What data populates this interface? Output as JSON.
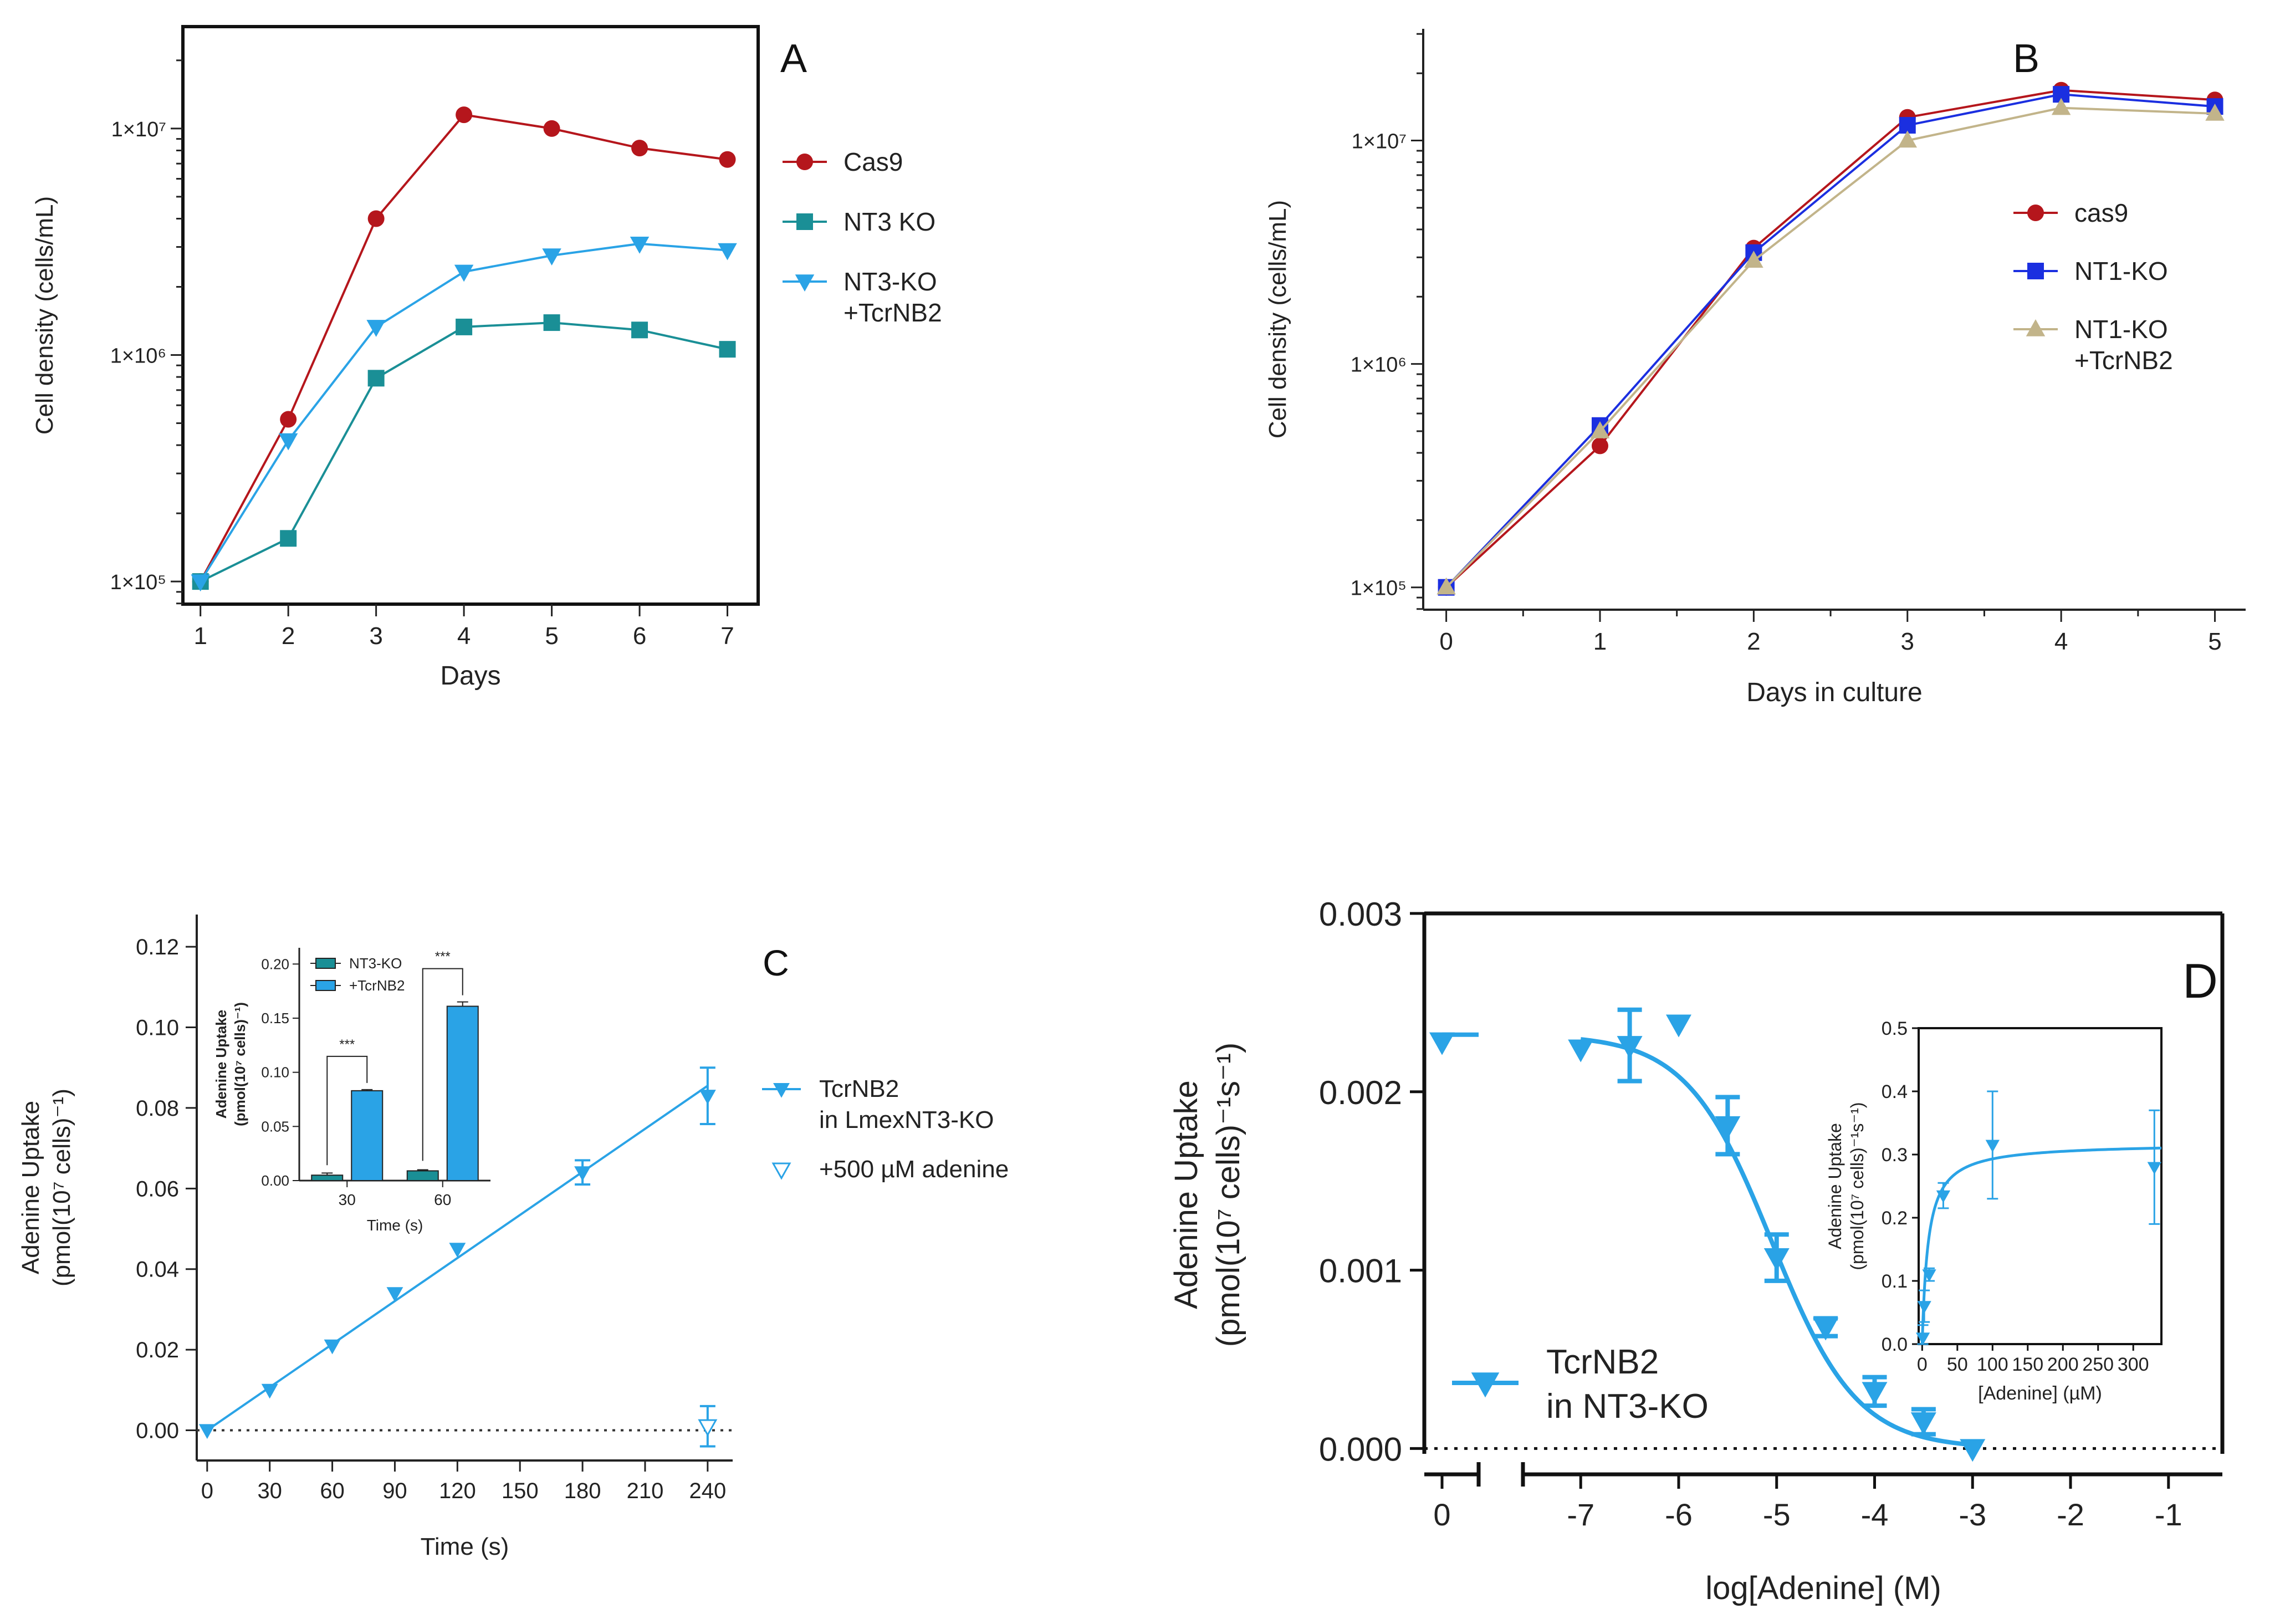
{
  "chart_data": [
    {
      "id": "A",
      "type": "line",
      "panel_label": "A",
      "xlabel": "Days",
      "ylabel": "Cell density (cells/mL)",
      "yscale": "log",
      "xlim": [
        0.8,
        7.35
      ],
      "ylim_log10": [
        4.9,
        7.45
      ],
      "xticks": [
        1,
        2,
        3,
        4,
        5,
        6,
        7
      ],
      "xtick_labels": [
        "1",
        "2",
        "3",
        "4",
        "5",
        "6",
        "7"
      ],
      "yticks": [
        5,
        6,
        7
      ],
      "ytick_labels": [
        "1×10⁵",
        "1×10⁶",
        "1×10⁷"
      ],
      "series": [
        {
          "name": "Cas9",
          "color": "#b5161c",
          "marker": "circle",
          "x": [
            1,
            2,
            3,
            4,
            5,
            6,
            7
          ],
          "y": [
            100000,
            520000,
            4000000,
            11500000,
            10000000,
            8200000,
            7300000
          ]
        },
        {
          "name": "NT3 KO",
          "color": "#1a8f96",
          "marker": "square",
          "x": [
            1,
            2,
            3,
            4,
            5,
            6,
            7
          ],
          "y": [
            100000,
            155000,
            790000,
            1330000,
            1390000,
            1290000,
            1060000
          ]
        },
        {
          "name": "NT3-KO +TcrNB2",
          "legend_lines": [
            "NT3-KO",
            "+TcrNB2"
          ],
          "color": "#2aa3e6",
          "marker": "triangle-down",
          "x": [
            1,
            2,
            3,
            4,
            5,
            6,
            7
          ],
          "y": [
            100000,
            420000,
            1330000,
            2330000,
            2750000,
            3100000,
            2900000
          ]
        }
      ]
    },
    {
      "id": "B",
      "type": "line",
      "panel_label": "B",
      "xlabel": "Days in culture",
      "ylabel": "Cell density (cells/mL)",
      "yscale": "log",
      "xlim": [
        -0.15,
        5.2
      ],
      "ylim_log10": [
        4.9,
        7.5
      ],
      "xticks": [
        0,
        1,
        2,
        3,
        4,
        5
      ],
      "xtick_labels": [
        "0",
        "1",
        "2",
        "3",
        "4",
        "5"
      ],
      "yticks": [
        5,
        6,
        7
      ],
      "ytick_labels": [
        "1×10⁵",
        "1×10⁶",
        "1×10⁷"
      ],
      "series": [
        {
          "name": "cas9",
          "color": "#b5161c",
          "marker": "circle",
          "x": [
            0,
            1,
            2,
            3,
            4,
            5
          ],
          "y": [
            100000,
            430000,
            3300000,
            12700000,
            16800000,
            15200000
          ]
        },
        {
          "name": "NT1-KO",
          "color": "#1b2fe0",
          "marker": "square",
          "x": [
            0,
            1,
            2,
            3,
            4,
            5
          ],
          "y": [
            100000,
            530000,
            3150000,
            11700000,
            16100000,
            14200000
          ]
        },
        {
          "name": "NT1-KO +TcrNB2",
          "legend_lines": [
            "NT1-KO",
            "+TcrNB2"
          ],
          "color": "#c2b48a",
          "marker": "triangle-up",
          "x": [
            0,
            1,
            2,
            3,
            4,
            5
          ],
          "y": [
            100000,
            500000,
            2900000,
            10000000,
            14000000,
            13200000
          ]
        }
      ]
    },
    {
      "id": "C",
      "type": "scatter",
      "panel_label": "C",
      "xlabel": "Time (s)",
      "ylabel_lines": [
        "Adenine Uptake",
        "(pmol(10⁷ cells)⁻¹)"
      ],
      "xlim": [
        -5,
        252
      ],
      "ylim": [
        -0.0075,
        0.128
      ],
      "xticks": [
        0,
        30,
        60,
        90,
        120,
        150,
        180,
        210,
        240
      ],
      "xtick_labels": [
        "0",
        "30",
        "60",
        "90",
        "120",
        "150",
        "180",
        "210",
        "240"
      ],
      "yticks": [
        0,
        0.02,
        0.04,
        0.06,
        0.08,
        0.1,
        0.12
      ],
      "ytick_labels": [
        "0.00",
        "0.02",
        "0.04",
        "0.06",
        "0.08",
        "0.10",
        "0.12"
      ],
      "series": [
        {
          "name": "TcrNB2 in LmexNT3-KO",
          "legend_lines": [
            "TcrNB2",
            "in LmexNT3-KO"
          ],
          "color": "#2aa3e6",
          "marker": "triangle-down-filled",
          "x": [
            0,
            30,
            60,
            90,
            120,
            180,
            240
          ],
          "y": [
            0,
            0.01,
            0.021,
            0.034,
            0.045,
            0.064,
            0.083
          ],
          "err": [
            0,
            0,
            0,
            0,
            0,
            0.003,
            0.007
          ],
          "fit": {
            "x": [
              0,
              240
            ],
            "y": [
              0,
              0.0855
            ]
          }
        },
        {
          "name": "+500 µM adenine",
          "color": "#2aa3e6",
          "marker": "triangle-down-open",
          "x": [
            240
          ],
          "y": [
            0.001
          ],
          "err": [
            0.005
          ]
        }
      ],
      "inset": {
        "type": "bar",
        "xlabel": "Time (s)",
        "ylabel_lines": [
          "Adenine Uptake",
          "(pmol(10⁷ cells)⁻¹)"
        ],
        "categories": [
          "30",
          "60"
        ],
        "ylim": [
          0,
          0.215
        ],
        "yticks": [
          0,
          0.05,
          0.1,
          0.15,
          0.2
        ],
        "ytick_labels": [
          "0.00",
          "0.05",
          "0.10",
          "0.15",
          "0.20"
        ],
        "significance": "***",
        "series": [
          {
            "name": "NT3-KO",
            "color": "#1a8f96",
            "values": [
              0.005,
              0.009
            ],
            "err": [
              0.002,
              0.001
            ]
          },
          {
            "name": "+TcrNB2",
            "color": "#2aa3e6",
            "values": [
              0.083,
              0.161
            ],
            "err": [
              0.001,
              0.004
            ]
          }
        ]
      }
    },
    {
      "id": "D",
      "type": "scatter",
      "panel_label": "D",
      "xlabel": "log[Adenine] (M)",
      "ylabel_lines": [
        "Adenine Uptake",
        "(pmol(10⁷ cells)⁻¹s⁻¹)"
      ],
      "xlim": [
        -7.55,
        -0.45
      ],
      "ylim": [
        -3e-05,
        0.003
      ],
      "xticks": [
        -7,
        -6,
        -5,
        -4,
        -3,
        -2,
        -1
      ],
      "xtick_labels": [
        "-7",
        "-6",
        "-5",
        "-4",
        "-3",
        "-2",
        "-1"
      ],
      "x_break_tick_label": "0",
      "yticks": [
        0,
        0.001,
        0.002,
        0.003
      ],
      "ytick_labels": [
        "0.000",
        "0.001",
        "0.002",
        "0.003"
      ],
      "series": [
        {
          "name": "TcrNB2 in NT3-KO",
          "legend_lines": [
            "TcrNB2",
            "in NT3-KO"
          ],
          "color": "#2aa3e6",
          "marker": "triangle-down-filled",
          "x": [
            -7,
            -6.5,
            -6,
            -5.5,
            -5,
            -4.5,
            -4,
            -3.5,
            -3
          ],
          "y": [
            0.00224,
            0.00226,
            0.00238,
            0.00181,
            0.00107,
            0.00068,
            0.00032,
            0.00015,
            0.0
          ],
          "err": [
            0,
            0.0002,
            0,
            0.00016,
            0.00013,
            5e-05,
            8e-05,
            7e-05,
            0
          ],
          "fit": {
            "top": 0.00232,
            "bottom": 0.0,
            "logIC50": -5.05
          }
        }
      ],
      "zero_point": {
        "x": 0,
        "y": 0.00228
      },
      "inset": {
        "type": "scatter",
        "xlabel": "[Adenine] (µM)",
        "ylabel_lines": [
          "Adenine Uptake",
          "(pmol(10⁷ cells)⁻¹s⁻¹)"
        ],
        "xlim": [
          -5,
          340
        ],
        "ylim": [
          0,
          0.5
        ],
        "xticks": [
          0,
          50,
          100,
          150,
          200,
          250,
          300
        ],
        "xtick_labels": [
          "0",
          "50",
          "100",
          "150",
          "200",
          "250",
          "300"
        ],
        "yticks": [
          0,
          0.1,
          0.2,
          0.3,
          0.4,
          0.5
        ],
        "ytick_labels": [
          "0.0",
          "0.1",
          "0.2",
          "0.3",
          "0.4",
          "0.5"
        ],
        "x": [
          1,
          3,
          10,
          30,
          100,
          330
        ],
        "y": [
          0.01,
          0.06,
          0.11,
          0.235,
          0.315,
          0.28
        ],
        "err": [
          0.02,
          0.025,
          0.01,
          0.02,
          0.085,
          0.09
        ],
        "fit": {
          "vmax": 0.318,
          "km": 8.5
        }
      }
    }
  ]
}
